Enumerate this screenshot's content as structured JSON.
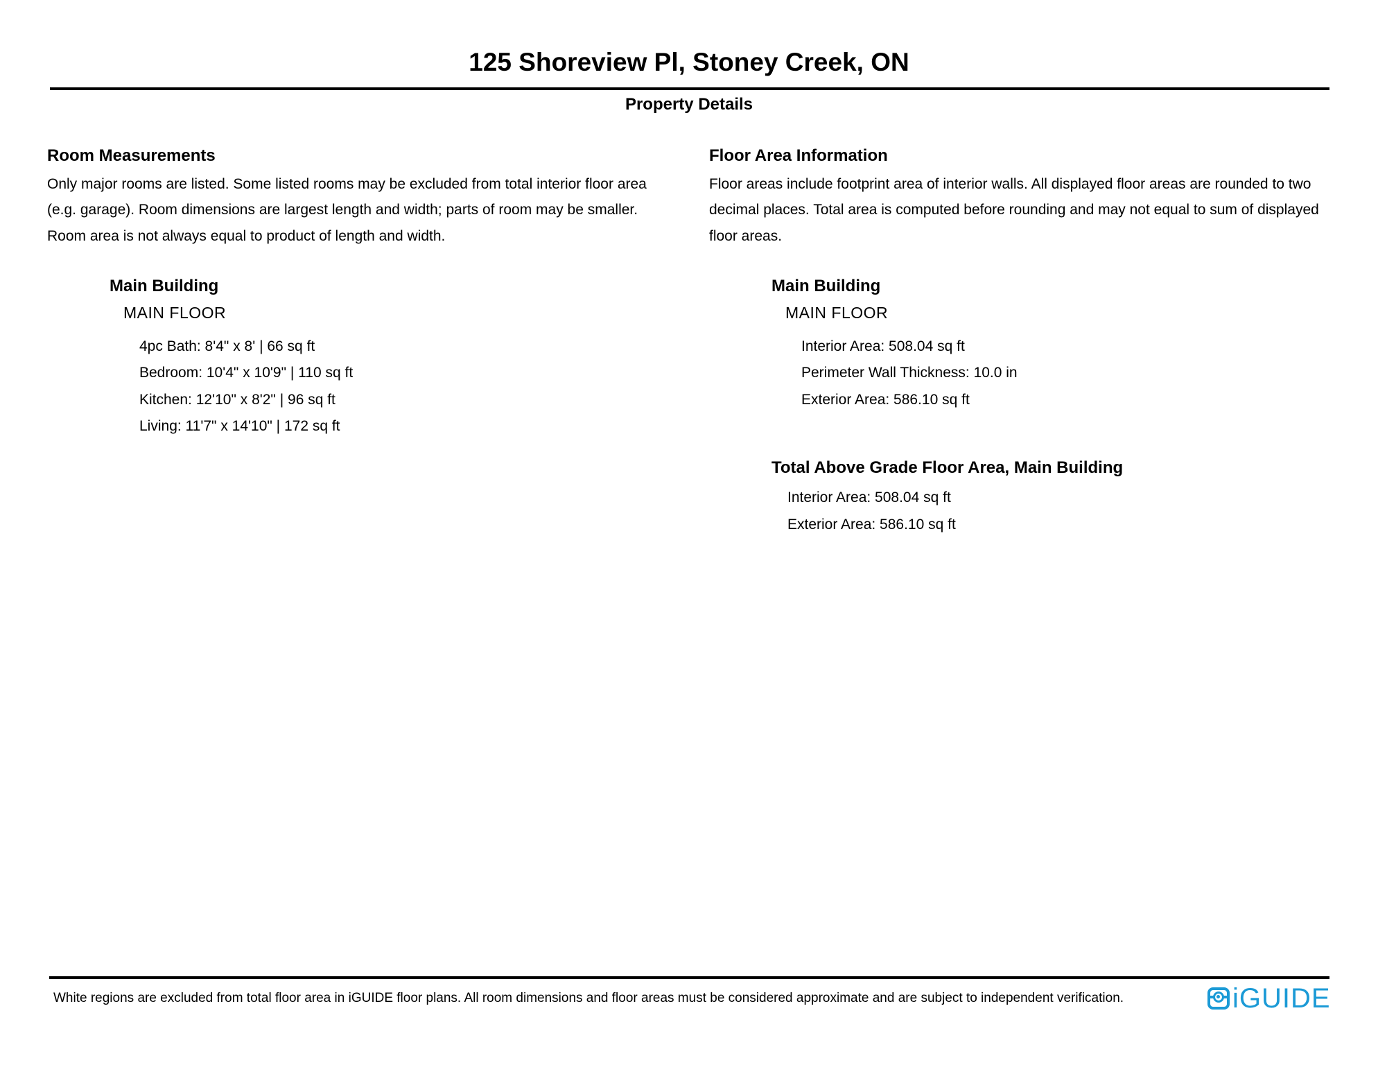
{
  "page": {
    "title": "125 Shoreview Pl, Stoney Creek, ON",
    "subtitle": "Property Details"
  },
  "room_measurements": {
    "heading": "Room Measurements",
    "description": "Only major rooms are listed. Some listed rooms may be excluded from total interior floor area\n(e.g. garage). Room dimensions are largest length and width; parts of room may be smaller.\nRoom area is not always equal to product of length and width.",
    "building": {
      "name": "Main Building",
      "floors": [
        {
          "name": "MAIN FLOOR",
          "rooms": [
            "4pc Bath: 8'4\" x 8' | 66 sq ft",
            "Bedroom: 10'4\" x 10'9\" | 110 sq ft",
            "Kitchen: 12'10\" x 8'2\" | 96 sq ft",
            "Living: 11'7\" x 14'10\" | 172 sq ft"
          ]
        }
      ]
    }
  },
  "floor_area_information": {
    "heading": "Floor Area Information",
    "description": "Floor areas include footprint area of interior walls. All displayed floor areas are rounded to two\ndecimal places. Total area is computed before rounding and may not equal to sum of displayed\nfloor areas.",
    "building": {
      "name": "Main Building",
      "floors": [
        {
          "name": "MAIN FLOOR",
          "stats": [
            "Interior Area: 508.04 sq ft",
            "Perimeter Wall Thickness: 10.0 in",
            "Exterior Area: 586.10 sq ft"
          ]
        }
      ],
      "total": {
        "heading": "Total Above Grade Floor Area, Main Building",
        "stats": [
          "Interior Area: 508.04 sq ft",
          "Exterior Area: 586.10 sq ft"
        ]
      }
    }
  },
  "footer": {
    "disclaimer": "White regions are excluded from total floor area in iGUIDE floor plans. All room dimensions and floor areas must be considered approximate and are subject to independent verification.",
    "logo_text": "iGUIDE",
    "logo_color": "#1B9AD6"
  }
}
